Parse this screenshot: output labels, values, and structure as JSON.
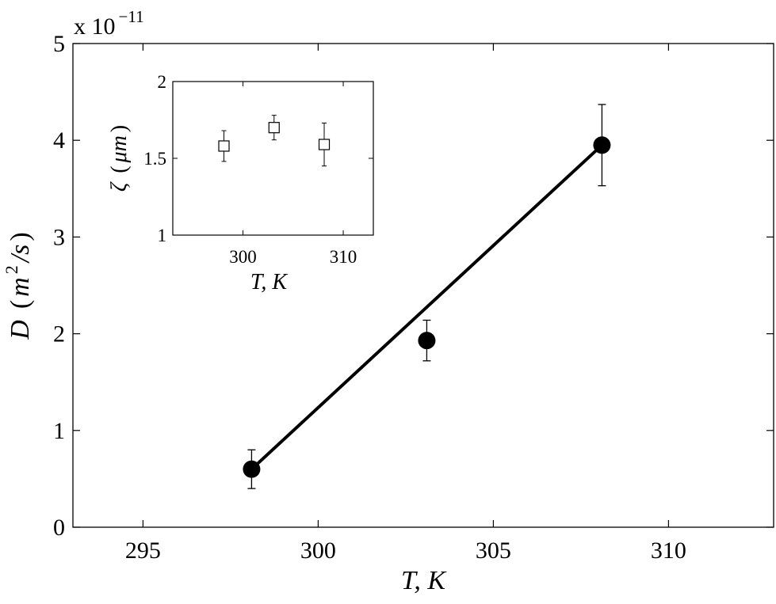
{
  "chart_data": [
    {
      "type": "scatter",
      "xlim": [
        293,
        313
      ],
      "ylim": [
        0,
        5
      ],
      "x_ticks": [
        295,
        300,
        305,
        310
      ],
      "y_ticks": [
        0,
        1,
        2,
        3,
        4,
        5
      ],
      "x_tick_labels": [
        "295",
        "300",
        "305",
        "310"
      ],
      "y_tick_labels": [
        "0",
        "1",
        "2",
        "3",
        "4",
        "5"
      ],
      "xlabel": {
        "base": "T, K"
      },
      "ylabel": {
        "base": "D",
        "paren_open": "(",
        "unit_a": "m",
        "unit_exp": "2",
        "unit_b": "/s",
        "paren_close": ")"
      },
      "exponent": {
        "prefix": "x 10",
        "power": "−11"
      },
      "grid": false,
      "series": [
        {
          "marker": "filled-circle",
          "x": [
            298.1,
            303.1,
            308.1
          ],
          "y": [
            0.6,
            1.93,
            3.95
          ],
          "err": [
            0.2,
            0.21,
            0.42
          ]
        },
        {
          "line": "solid",
          "x": [
            298.1,
            308.1
          ],
          "y": [
            0.6,
            3.95
          ]
        }
      ]
    },
    {
      "type": "scatter",
      "inset": true,
      "xlim": [
        293,
        313
      ],
      "ylim": [
        1,
        2
      ],
      "x_ticks": [
        300,
        310
      ],
      "y_ticks": [
        1,
        1.5,
        2
      ],
      "x_tick_labels": [
        "300",
        "310"
      ],
      "y_tick_labels": [
        "1",
        "1.5",
        "2"
      ],
      "xlabel": {
        "base": "T, K"
      },
      "ylabel": {
        "symbol": "ζ",
        "paren_open": "(",
        "unit": "μm",
        "paren_close": ")"
      },
      "grid": false,
      "series": [
        {
          "marker": "open-square",
          "x": [
            298.1,
            303.1,
            308.1
          ],
          "y": [
            1.58,
            1.7,
            1.59
          ],
          "err": [
            0.1,
            0.08,
            0.14
          ]
        }
      ]
    }
  ]
}
